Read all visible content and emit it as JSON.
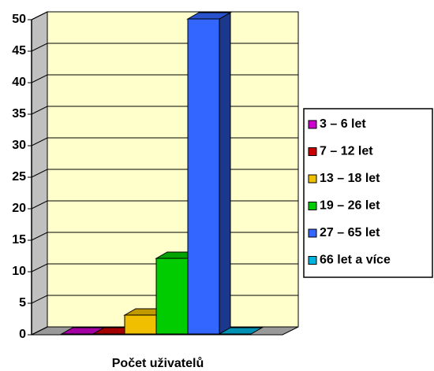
{
  "chart_data": {
    "type": "bar3d",
    "categories": [
      "Počet uživatelů"
    ],
    "series": [
      {
        "name": "3 – 6 let",
        "color": "#cc00cc",
        "values": [
          0
        ]
      },
      {
        "name": "7 – 12 let",
        "color": "#cc0000",
        "values": [
          0
        ]
      },
      {
        "name": "13 – 18 let",
        "color": "#f0c000",
        "values": [
          3
        ]
      },
      {
        "name": "19 – 26 let",
        "color": "#00cc00",
        "values": [
          12
        ]
      },
      {
        "name": "27 – 65 let",
        "color": "#3366ff",
        "values": [
          50
        ]
      },
      {
        "name": "66 let a více",
        "color": "#00b4e0",
        "values": [
          0
        ]
      }
    ],
    "ylim": [
      0,
      50
    ],
    "yticks": [
      0,
      5,
      10,
      15,
      20,
      25,
      30,
      35,
      40,
      45,
      50
    ],
    "grid": true,
    "legend": "right"
  }
}
